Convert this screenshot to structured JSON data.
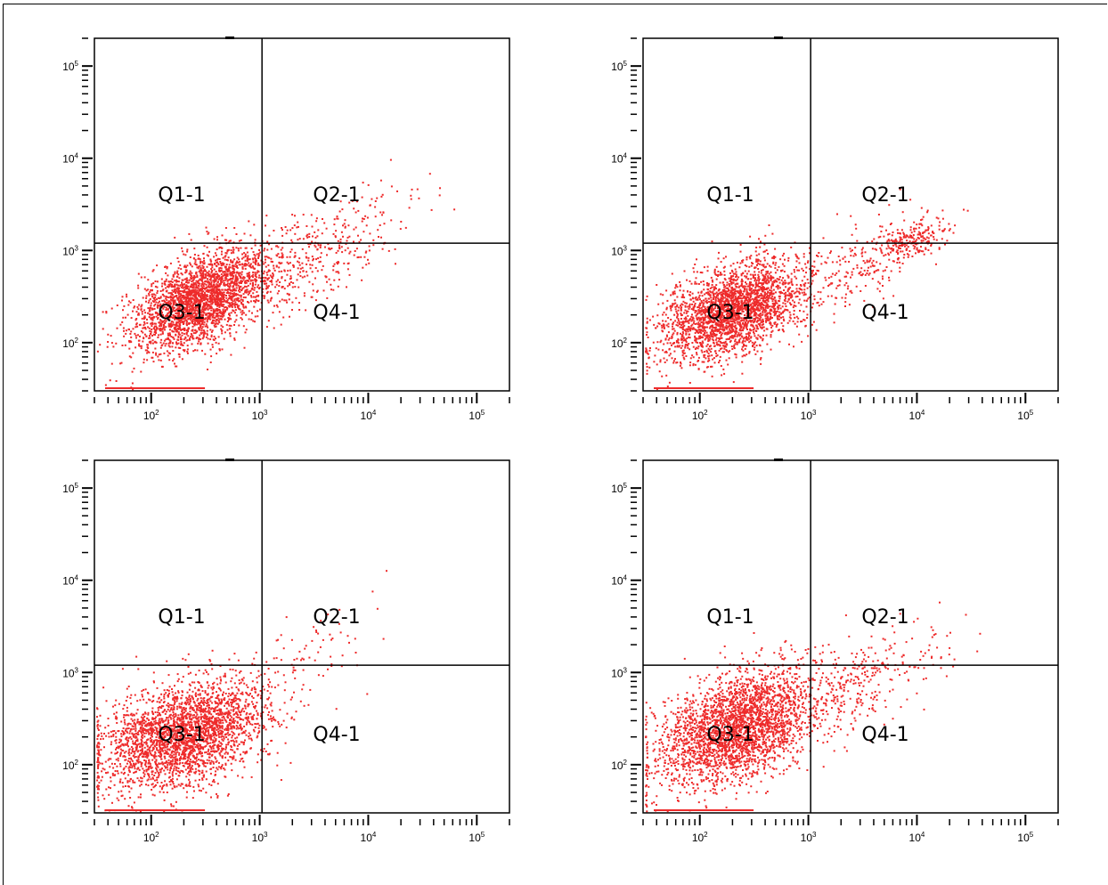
{
  "chart_data": [
    {
      "type": "scatter",
      "x_scale": "log",
      "y_scale": "log",
      "xlim": [
        30,
        200000
      ],
      "ylim": [
        30,
        200000
      ],
      "x_ticks": [
        "10^2",
        "10^3",
        "10^4",
        "10^5"
      ],
      "y_ticks": [
        "10^2",
        "10^3",
        "10^4",
        "10^5"
      ],
      "gate_x": 1050,
      "gate_y": 1200,
      "quadrant_labels": [
        "Q1-1",
        "Q2-1",
        "Q3-1",
        "Q4-1"
      ],
      "color": "#ee2b2b",
      "clusters": [
        {
          "cx": 280,
          "cy": 300,
          "sx": 0.32,
          "sy": 0.28,
          "rho": 0.55,
          "n": 2600
        },
        {
          "cx": 2500,
          "cy": 700,
          "sx": 0.35,
          "sy": 0.28,
          "rho": 0.6,
          "n": 260
        },
        {
          "cx": 7000,
          "cy": 1800,
          "sx": 0.35,
          "sy": 0.25,
          "rho": 0.6,
          "n": 110
        }
      ]
    },
    {
      "type": "scatter",
      "x_scale": "log",
      "y_scale": "log",
      "xlim": [
        30,
        200000
      ],
      "ylim": [
        30,
        200000
      ],
      "x_ticks": [
        "10^2",
        "10^3",
        "10^4",
        "10^5"
      ],
      "y_ticks": [
        "10^2",
        "10^3",
        "10^4",
        "10^5"
      ],
      "gate_x": 1050,
      "gate_y": 1200,
      "quadrant_labels": [
        "Q1-1",
        "Q2-1",
        "Q3-1",
        "Q4-1"
      ],
      "color": "#ee2b2b",
      "clusters": [
        {
          "cx": 200,
          "cy": 230,
          "sx": 0.33,
          "sy": 0.26,
          "rho": 0.45,
          "n": 2600
        },
        {
          "cx": 3000,
          "cy": 700,
          "sx": 0.3,
          "sy": 0.25,
          "rho": 0.6,
          "n": 220
        },
        {
          "cx": 9000,
          "cy": 1300,
          "sx": 0.18,
          "sy": 0.13,
          "rho": 0.6,
          "n": 200
        }
      ]
    },
    {
      "type": "scatter",
      "x_scale": "log",
      "y_scale": "log",
      "xlim": [
        30,
        200000
      ],
      "ylim": [
        30,
        200000
      ],
      "x_ticks": [
        "10^2",
        "10^3",
        "10^4",
        "10^5"
      ],
      "y_ticks": [
        "10^2",
        "10^3",
        "10^4",
        "10^5"
      ],
      "gate_x": 1050,
      "gate_y": 1200,
      "quadrant_labels": [
        "Q1-1",
        "Q2-1",
        "Q3-1",
        "Q4-1"
      ],
      "color": "#ee2b2b",
      "clusters": [
        {
          "cx": 200,
          "cy": 220,
          "sx": 0.38,
          "sy": 0.3,
          "rho": 0.4,
          "n": 2800
        },
        {
          "cx": 2600,
          "cy": 1500,
          "sx": 0.3,
          "sy": 0.3,
          "rho": 0.7,
          "n": 70
        }
      ]
    },
    {
      "type": "scatter",
      "x_scale": "log",
      "y_scale": "log",
      "xlim": [
        30,
        200000
      ],
      "ylim": [
        30,
        200000
      ],
      "x_ticks": [
        "10^2",
        "10^3",
        "10^4",
        "10^5"
      ],
      "y_ticks": [
        "10^2",
        "10^3",
        "10^4",
        "10^5"
      ],
      "gate_x": 1050,
      "gate_y": 1200,
      "quadrant_labels": [
        "Q1-1",
        "Q2-1",
        "Q3-1",
        "Q4-1"
      ],
      "color": "#ee2b2b",
      "clusters": [
        {
          "cx": 220,
          "cy": 260,
          "sx": 0.36,
          "sy": 0.32,
          "rho": 0.45,
          "n": 2800
        },
        {
          "cx": 2500,
          "cy": 700,
          "sx": 0.32,
          "sy": 0.3,
          "rho": 0.5,
          "n": 230
        },
        {
          "cx": 8000,
          "cy": 1400,
          "sx": 0.3,
          "sy": 0.2,
          "rho": 0.5,
          "n": 70
        }
      ]
    }
  ]
}
